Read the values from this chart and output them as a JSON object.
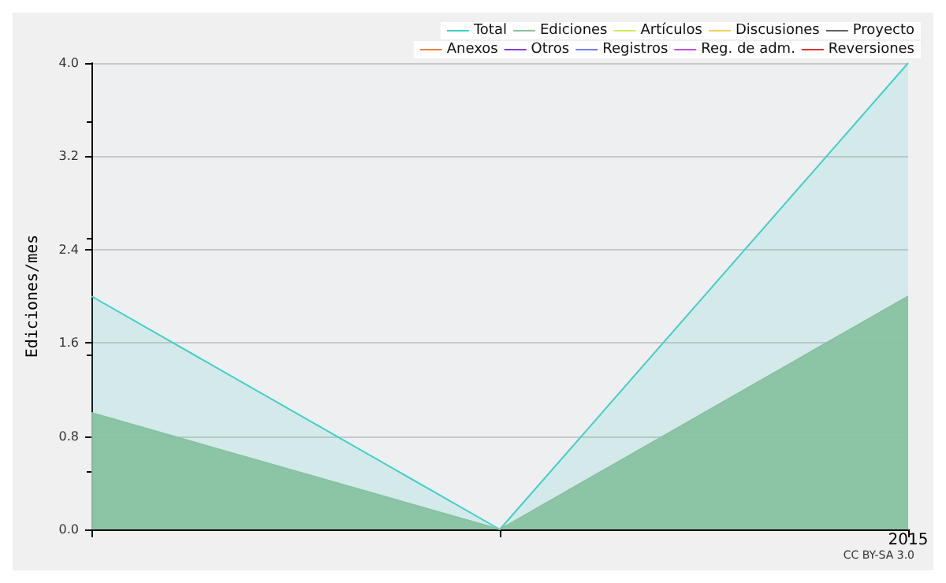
{
  "chart_data": {
    "type": "area",
    "ylabel": "Ediciones/mes",
    "categories": [
      null,
      null,
      "2015"
    ],
    "ylim": [
      0,
      4
    ],
    "yticks": [
      {
        "value": 0,
        "label": "0.0"
      },
      {
        "value": 0.8,
        "label": "0.8"
      },
      {
        "value": 1.6,
        "label": "1.6"
      },
      {
        "value": 2.4,
        "label": "2.4"
      },
      {
        "value": 3.2,
        "label": "3.2"
      },
      {
        "value": 4,
        "label": "4.0"
      }
    ],
    "grid": "y",
    "legend": "top right",
    "marker": "none",
    "annotations": [
      "CC BY-SA 3.0"
    ],
    "series": [
      {
        "name": "Total",
        "color": "#40d0c8",
        "values": [
          2,
          0,
          4
        ]
      },
      {
        "name": "Ediciones",
        "color": "#88c2a2",
        "values": [
          1,
          0,
          2
        ]
      },
      {
        "name": "Artículos",
        "color": "#c8f060",
        "values": [
          null,
          null,
          null
        ]
      },
      {
        "name": "Discusiones",
        "color": "#f0d060",
        "values": [
          null,
          null,
          null
        ]
      },
      {
        "name": "Proyecto",
        "color": "#606060",
        "values": [
          null,
          null,
          null
        ]
      },
      {
        "name": "Anexos",
        "color": "#f08040",
        "values": [
          null,
          null,
          null
        ]
      },
      {
        "name": "Otros",
        "color": "#8040d0",
        "values": [
          null,
          null,
          null
        ]
      },
      {
        "name": "Registros",
        "color": "#7080f0",
        "values": [
          null,
          null,
          null
        ]
      },
      {
        "name": "Reg. de adm.",
        "color": "#c050e0",
        "values": [
          null,
          null,
          null
        ]
      },
      {
        "name": "Reversiones",
        "color": "#e03030",
        "values": [
          null,
          null,
          null
        ]
      }
    ]
  }
}
